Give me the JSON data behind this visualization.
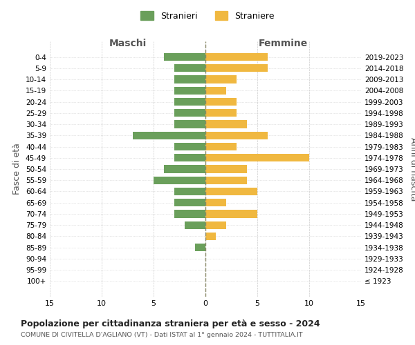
{
  "age_groups": [
    "100+",
    "95-99",
    "90-94",
    "85-89",
    "80-84",
    "75-79",
    "70-74",
    "65-69",
    "60-64",
    "55-59",
    "50-54",
    "45-49",
    "40-44",
    "35-39",
    "30-34",
    "25-29",
    "20-24",
    "15-19",
    "10-14",
    "5-9",
    "0-4"
  ],
  "birth_years": [
    "≤ 1923",
    "1924-1928",
    "1929-1933",
    "1934-1938",
    "1939-1943",
    "1944-1948",
    "1949-1953",
    "1954-1958",
    "1959-1963",
    "1964-1968",
    "1969-1973",
    "1974-1978",
    "1979-1983",
    "1984-1988",
    "1989-1993",
    "1994-1998",
    "1999-2003",
    "2004-2008",
    "2009-2013",
    "2014-2018",
    "2019-2023"
  ],
  "males": [
    0,
    0,
    0,
    1,
    0,
    2,
    3,
    3,
    3,
    5,
    4,
    3,
    3,
    7,
    3,
    3,
    3,
    3,
    3,
    3,
    4
  ],
  "females": [
    0,
    0,
    0,
    0,
    1,
    2,
    5,
    2,
    5,
    4,
    4,
    10,
    3,
    6,
    4,
    3,
    3,
    2,
    3,
    6,
    6
  ],
  "male_color": "#6a9f5b",
  "female_color": "#f0b840",
  "title": "Popolazione per cittadinanza straniera per età e sesso - 2024",
  "subtitle": "COMUNE DI CIVITELLA D'AGLIANO (VT) - Dati ISTAT al 1° gennaio 2024 - TUTTITALIA.IT",
  "xlabel_left": "Maschi",
  "xlabel_right": "Femmine",
  "ylabel_left": "Fasce di età",
  "ylabel_right": "Anni di nascita",
  "legend_stranieri": "Stranieri",
  "legend_straniere": "Straniere",
  "xlim": 15,
  "background_color": "#ffffff",
  "grid_color": "#cccccc"
}
